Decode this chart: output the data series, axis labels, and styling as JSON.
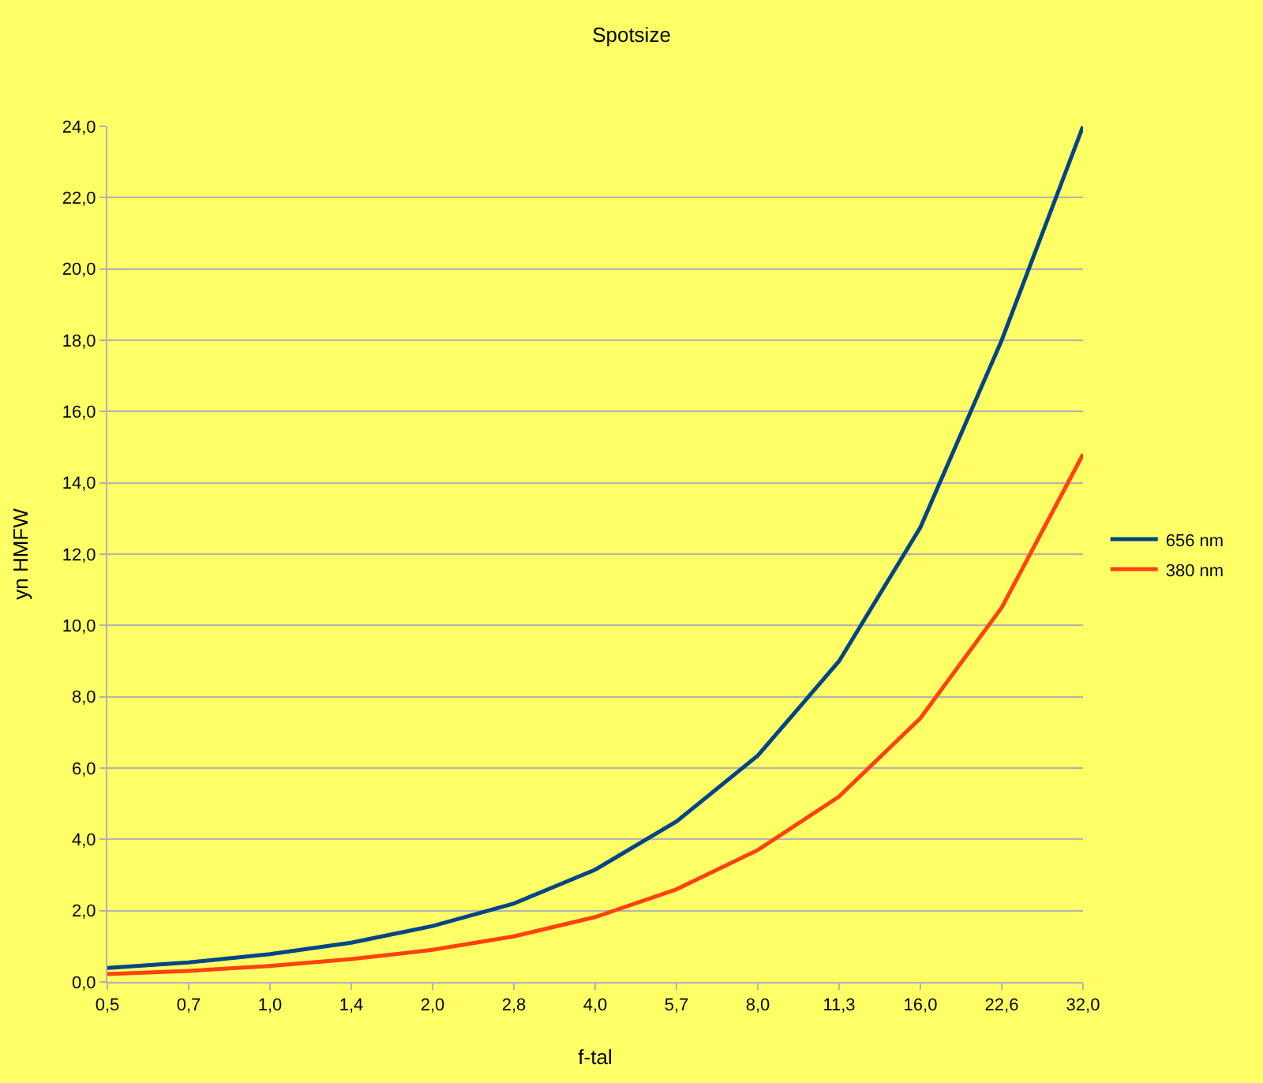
{
  "chart_data": {
    "type": "line",
    "title": "Spotsize",
    "xlabel": "f-tal",
    "ylabel": "yn HMFW",
    "categories": [
      "0,5",
      "0,7",
      "1,0",
      "1,4",
      "2,0",
      "2,8",
      "4,0",
      "5,7",
      "8,0",
      "11,3",
      "16,0",
      "22,6",
      "32,0"
    ],
    "series": [
      {
        "name": "656 nm",
        "color": "#004586",
        "values": [
          0.39,
          0.55,
          0.78,
          1.1,
          1.57,
          2.2,
          3.15,
          4.5,
          6.35,
          9.0,
          12.75,
          18.0,
          24.0
        ]
      },
      {
        "name": "380 nm",
        "color": "#ff420e",
        "values": [
          0.22,
          0.31,
          0.45,
          0.64,
          0.9,
          1.28,
          1.82,
          2.6,
          3.7,
          5.2,
          7.4,
          10.5,
          14.8
        ]
      }
    ],
    "ylim": [
      0,
      24
    ],
    "yticks": [
      {
        "value": 0,
        "label": "0,0"
      },
      {
        "value": 2,
        "label": "2,0"
      },
      {
        "value": 4,
        "label": "4,0"
      },
      {
        "value": 6,
        "label": "6,0"
      },
      {
        "value": 8,
        "label": "8,0"
      },
      {
        "value": 10,
        "label": "10,0"
      },
      {
        "value": 12,
        "label": "12,0"
      },
      {
        "value": 14,
        "label": "14,0"
      },
      {
        "value": 16,
        "label": "16,0"
      },
      {
        "value": 18,
        "label": "18,0"
      },
      {
        "value": 20,
        "label": "20,0"
      },
      {
        "value": 22,
        "label": "22,0"
      },
      {
        "value": 24,
        "label": "24,0"
      }
    ],
    "grid": "y",
    "legend": "right",
    "marker": "none",
    "line_style": "solid"
  }
}
